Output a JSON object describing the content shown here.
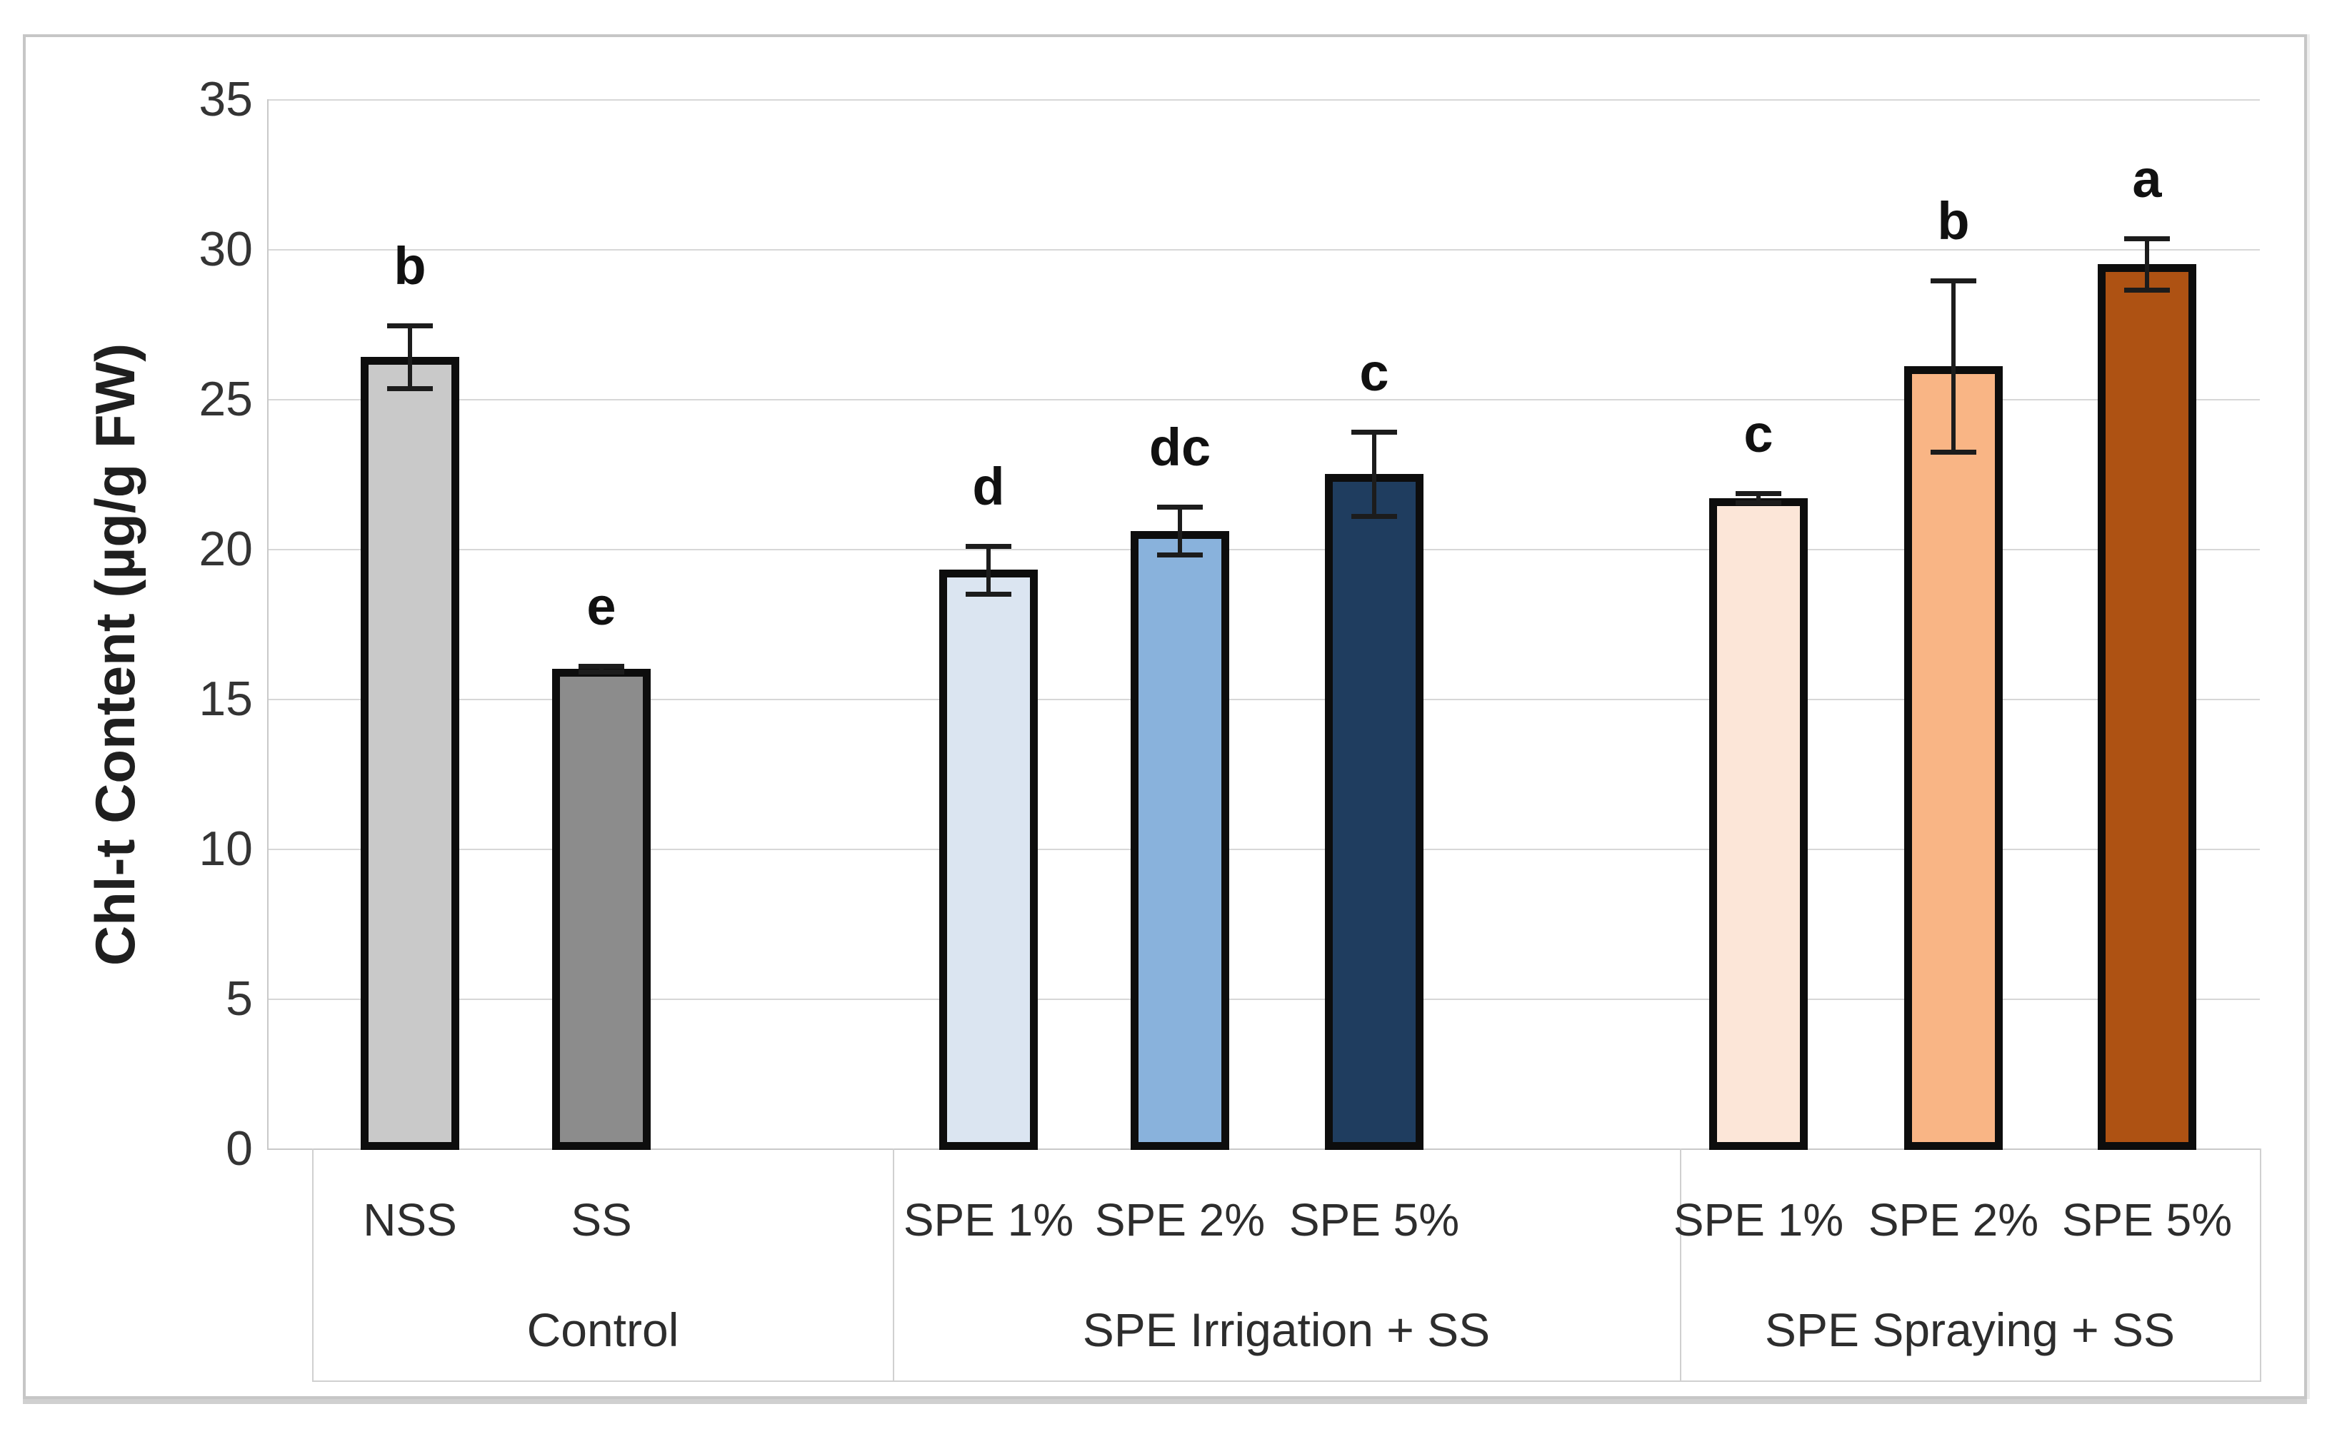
{
  "figure": {
    "background": "#ffffff",
    "frame_color": "#c6c6c6",
    "gridline_color": "#d7d7d7",
    "bar_border_color": "#0d0d0d",
    "error_bar_color": "#1c1c1c"
  },
  "chart_data": {
    "type": "bar",
    "title": "",
    "xlabel": "",
    "ylabel": "Chl-t Content (µg/g FW)",
    "ylim": [
      0,
      35
    ],
    "yticks": [
      0,
      5,
      10,
      15,
      20,
      25,
      30,
      35
    ],
    "grid": true,
    "legend": "none",
    "groups": [
      {
        "label": "Control",
        "bars": [
          {
            "category": "NSS",
            "value": 26.4,
            "error": 1.05,
            "sig_letter": "b",
            "color": "#c9c9c9"
          },
          {
            "category": "SS",
            "value": 16.0,
            "error": 0.1,
            "sig_letter": "e",
            "color": "#8c8c8c"
          }
        ]
      },
      {
        "label": "SPE Irrigation + SS",
        "bars": [
          {
            "category": "SPE 1%",
            "value": 19.3,
            "error": 0.8,
            "sig_letter": "d",
            "color": "#dbe5f1"
          },
          {
            "category": "SPE 2%",
            "value": 20.6,
            "error": 0.8,
            "sig_letter": "dc",
            "color": "#89b2dc"
          },
          {
            "category": "SPE 5%",
            "value": 22.5,
            "error": 1.4,
            "sig_letter": "c",
            "color": "#1f3d5f"
          }
        ]
      },
      {
        "label": "SPE Spraying + SS",
        "bars": [
          {
            "category": "SPE 1%",
            "value": 21.7,
            "error": 0.15,
            "sig_letter": "c",
            "color": "#fce6d8"
          },
          {
            "category": "SPE 2%",
            "value": 26.1,
            "error": 2.85,
            "sig_letter": "b",
            "color": "#f9b585"
          },
          {
            "category": "SPE 5%",
            "value": 29.5,
            "error": 0.85,
            "sig_letter": "a",
            "color": "#ae5213"
          }
        ]
      }
    ]
  }
}
